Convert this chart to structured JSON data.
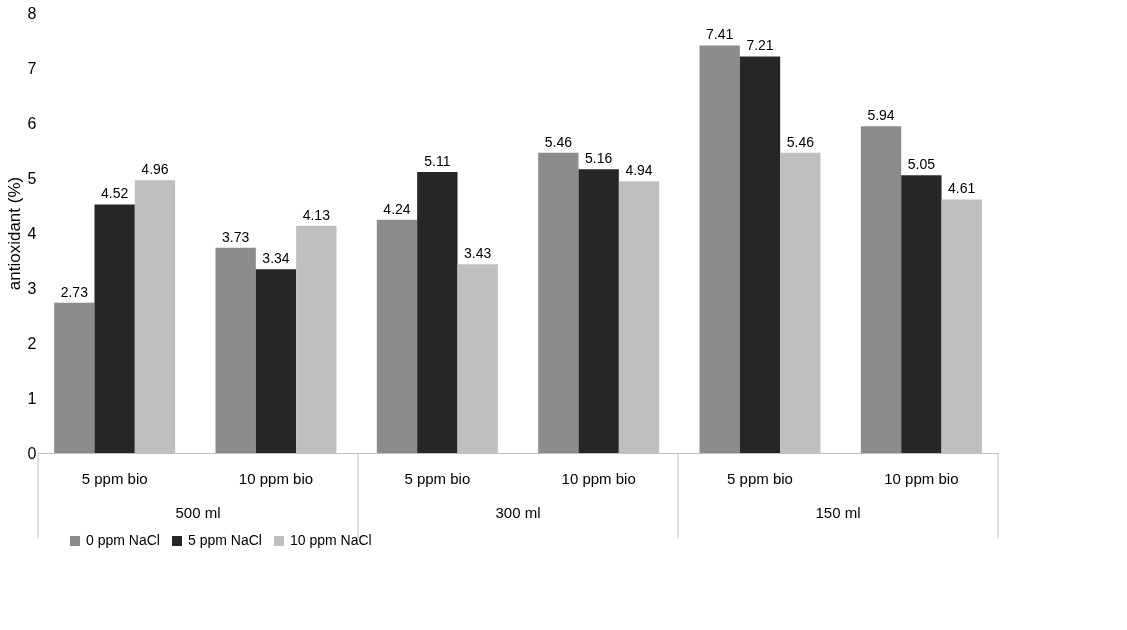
{
  "chart_data": {
    "type": "bar",
    "ylabel": "antioxidant (%)",
    "categories": [
      "5 ppm bio",
      "10 ppm bio",
      "5 ppm bio",
      "10 ppm bio",
      "5 ppm bio",
      "10 ppm bio"
    ],
    "annotations": [
      "500 ml",
      "300 ml",
      "150 ml"
    ],
    "series": [
      {
        "name": "0 ppm NaCl",
        "color": "#8c8c8c",
        "values": [
          2.73,
          3.73,
          4.24,
          5.46,
          7.41,
          5.94
        ]
      },
      {
        "name": "5 ppm NaCl",
        "color": "#262626",
        "values": [
          4.52,
          3.34,
          5.11,
          5.16,
          7.21,
          5.05
        ]
      },
      {
        "name": "10 ppm NaCl",
        "color": "#bfbfbf",
        "values": [
          4.96,
          4.13,
          3.43,
          4.94,
          5.46,
          4.61
        ]
      }
    ],
    "ylim": [
      0,
      8
    ],
    "yticks": [
      0,
      1,
      2,
      3,
      4,
      5,
      6,
      7,
      8
    ],
    "data_labels": true,
    "grid": false,
    "legend": "bottom"
  }
}
